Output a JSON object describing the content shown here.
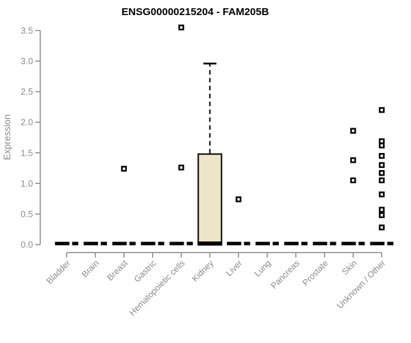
{
  "chart_data": {
    "type": "boxplot",
    "title": "ENSG00000215204 - FAM205B",
    "ylabel": "Expression",
    "xlabel": "",
    "ylim": [
      0,
      3.5
    ],
    "ytick_labels": [
      "0.0",
      "0.5",
      "1.0",
      "1.5",
      "2.0",
      "2.5",
      "3.0",
      "3.5"
    ],
    "grid": false,
    "legend": "none",
    "categories": [
      "Bladder",
      "Brain",
      "Breast",
      "Gastric",
      "Hematopoietic cells",
      "Kidney",
      "Liver",
      "Lung",
      "Pancreas",
      "Prostate",
      "Skin",
      "Unknown / Other"
    ],
    "boxes": [
      {
        "category": "Bladder",
        "q1": 0,
        "median": 0,
        "q3": 0,
        "whisker_low": 0,
        "whisker_high": 0,
        "outliers": []
      },
      {
        "category": "Brain",
        "q1": 0,
        "median": 0,
        "q3": 0,
        "whisker_low": 0,
        "whisker_high": 0,
        "outliers": []
      },
      {
        "category": "Breast",
        "q1": 0,
        "median": 0,
        "q3": 0,
        "whisker_low": 0,
        "whisker_high": 0,
        "outliers": [
          1.24
        ]
      },
      {
        "category": "Gastric",
        "q1": 0,
        "median": 0,
        "q3": 0,
        "whisker_low": 0,
        "whisker_high": 0,
        "outliers": []
      },
      {
        "category": "Hematopoietic cells",
        "q1": 0,
        "median": 0,
        "q3": 0,
        "whisker_low": 0,
        "whisker_high": 0,
        "outliers": [
          3.55,
          1.26
        ]
      },
      {
        "category": "Kidney",
        "q1": 0,
        "median": 0,
        "q3": 1.48,
        "whisker_low": 0,
        "whisker_high": 2.96,
        "outliers": []
      },
      {
        "category": "Liver",
        "q1": 0,
        "median": 0,
        "q3": 0,
        "whisker_low": 0,
        "whisker_high": 0,
        "outliers": [
          0.74
        ]
      },
      {
        "category": "Lung",
        "q1": 0,
        "median": 0,
        "q3": 0,
        "whisker_low": 0,
        "whisker_high": 0,
        "outliers": []
      },
      {
        "category": "Pancreas",
        "q1": 0,
        "median": 0,
        "q3": 0,
        "whisker_low": 0,
        "whisker_high": 0,
        "outliers": []
      },
      {
        "category": "Prostate",
        "q1": 0,
        "median": 0,
        "q3": 0,
        "whisker_low": 0,
        "whisker_high": 0,
        "outliers": []
      },
      {
        "category": "Skin",
        "q1": 0,
        "median": 0,
        "q3": 0,
        "whisker_low": 0,
        "whisker_high": 0,
        "outliers": [
          1.86,
          1.38,
          1.05
        ]
      },
      {
        "category": "Unknown / Other",
        "q1": 0,
        "median": 0,
        "q3": 0,
        "whisker_low": 0,
        "whisker_high": 0,
        "outliers": [
          2.2,
          1.69,
          1.62,
          1.45,
          1.3,
          1.17,
          1.05,
          0.82,
          0.57,
          0.48,
          0.28
        ]
      }
    ],
    "style": {
      "box_fill": "#ece5c8",
      "box_stroke": "#000000",
      "median_color": "#000000",
      "whisker_color": "#000000",
      "outlier_fill": "#ffffff",
      "outlier_stroke": "#000000",
      "axis_color": "#888888",
      "tick_label_color": "#8a8a8a",
      "title_color": "#000000",
      "background": "#ffffff"
    }
  }
}
